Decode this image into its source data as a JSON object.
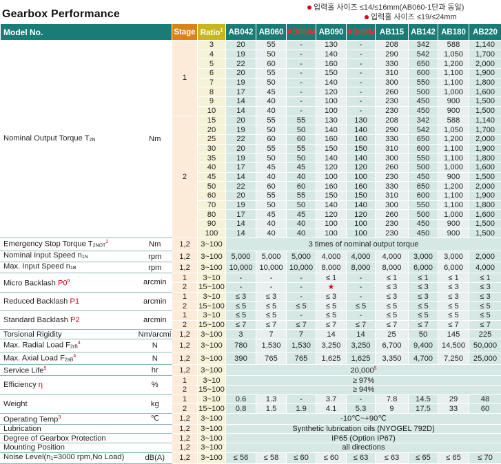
{
  "title": "Gearbox Performance",
  "notes": {
    "note1": "입력홀 사이즈 ≤14/≤16mm(AB060-1단과 동일)",
    "note2": "입력홀 사이즈 ≤19/≤24mm"
  },
  "header": {
    "model": "Model No.",
    "stage": "Stage",
    "ratio": "Ratio",
    "ratio_sup": "1",
    "models": [
      "AB042",
      "AB060",
      "AB060A",
      "AB090",
      "AB090A",
      "AB115",
      "AB142",
      "AB180",
      "AB220"
    ]
  },
  "torque": {
    "label": "Nominal Output Torque T",
    "label_sub": "2N",
    "unit": "Nm",
    "stage1": {
      "stage": "1",
      "rows": [
        [
          "3",
          "20",
          "55",
          "-",
          "130",
          "-",
          "208",
          "342",
          "588",
          "1,140"
        ],
        [
          "4",
          "19",
          "50",
          "-",
          "140",
          "-",
          "290",
          "542",
          "1,050",
          "1,700"
        ],
        [
          "5",
          "22",
          "60",
          "-",
          "160",
          "-",
          "330",
          "650",
          "1,200",
          "2,000"
        ],
        [
          "6",
          "20",
          "55",
          "-",
          "150",
          "-",
          "310",
          "600",
          "1,100",
          "1,900"
        ],
        [
          "7",
          "19",
          "50",
          "-",
          "140",
          "-",
          "300",
          "550",
          "1,100",
          "1,800"
        ],
        [
          "8",
          "17",
          "45",
          "-",
          "120",
          "-",
          "260",
          "500",
          "1,000",
          "1,600"
        ],
        [
          "9",
          "14",
          "40",
          "-",
          "100",
          "-",
          "230",
          "450",
          "900",
          "1,500"
        ],
        [
          "10",
          "14",
          "40",
          "-",
          "100",
          "-",
          "230",
          "450",
          "900",
          "1,500"
        ]
      ]
    },
    "stage2": {
      "stage": "2",
      "rows": [
        [
          "15",
          "20",
          "55",
          "55",
          "130",
          "130",
          "208",
          "342",
          "588",
          "1,140"
        ],
        [
          "20",
          "19",
          "50",
          "50",
          "140",
          "140",
          "290",
          "542",
          "1,050",
          "1,700"
        ],
        [
          "25",
          "22",
          "60",
          "60",
          "160",
          "160",
          "330",
          "650",
          "1,200",
          "2,000"
        ],
        [
          "30",
          "20",
          "55",
          "55",
          "150",
          "150",
          "310",
          "600",
          "1,100",
          "1,900"
        ],
        [
          "35",
          "19",
          "50",
          "50",
          "140",
          "140",
          "300",
          "550",
          "1,100",
          "1,800"
        ],
        [
          "40",
          "17",
          "45",
          "45",
          "120",
          "120",
          "260",
          "500",
          "1,000",
          "1,600"
        ],
        [
          "45",
          "14",
          "40",
          "40",
          "100",
          "100",
          "230",
          "450",
          "900",
          "1,500"
        ],
        [
          "50",
          "22",
          "60",
          "60",
          "160",
          "160",
          "330",
          "650",
          "1,200",
          "2,000"
        ],
        [
          "60",
          "20",
          "55",
          "55",
          "150",
          "150",
          "310",
          "600",
          "1,100",
          "1,900"
        ],
        [
          "70",
          "19",
          "50",
          "50",
          "140",
          "140",
          "300",
          "550",
          "1,100",
          "1,800"
        ],
        [
          "80",
          "17",
          "45",
          "45",
          "120",
          "120",
          "260",
          "500",
          "1,000",
          "1,600"
        ],
        [
          "90",
          "14",
          "40",
          "40",
          "100",
          "100",
          "230",
          "450",
          "900",
          "1,500"
        ],
        [
          "100",
          "14",
          "40",
          "40",
          "100",
          "100",
          "230",
          "450",
          "900",
          "1,500"
        ]
      ]
    }
  },
  "emergency": {
    "label": "Emergency Stop Torque T",
    "sub": "2NOT",
    "sup": "2",
    "unit": "Nm",
    "stage": "1,2",
    "ratio": "3~100",
    "value": "3 times of nominal output torque"
  },
  "input_speed": {
    "label": "Nominal Input Speed n",
    "sub": "1N",
    "unit": "rpm",
    "stage": "1,2",
    "ratio": "3~100",
    "values": [
      "5,000",
      "5,000",
      "5,000",
      "4,000",
      "4,000",
      "4,000",
      "3,000",
      "3,000",
      "2,000"
    ]
  },
  "max_speed": {
    "label": "Max. Input Speed n",
    "sub": "1B",
    "unit": "rpm",
    "stage": "1,2",
    "ratio": "3~100",
    "values": [
      "10,000",
      "10,000",
      "10,000",
      "8,000",
      "8,000",
      "8,000",
      "6,000",
      "6,000",
      "4,000"
    ]
  },
  "micro_backlash": {
    "label": "Micro Backlash ",
    "p": "P0",
    "sup": "6",
    "unit": "arcmin",
    "rows": [
      {
        "stage": "1",
        "ratio": "3~10",
        "values": [
          "-",
          "-",
          "-",
          "≤ 1",
          "-",
          "≤ 1",
          "≤ 1",
          "≤ 1",
          "≤ 1"
        ]
      },
      {
        "stage": "2",
        "ratio": "15~100",
        "values": [
          "-",
          "-",
          "-",
          "★",
          "-",
          "≤ 3",
          "≤ 3",
          "≤ 3",
          "≤ 3"
        ]
      }
    ]
  },
  "reduced_backlash": {
    "label": "Reduced Backlash ",
    "p": "P1",
    "unit": "arcmin",
    "rows": [
      {
        "stage": "1",
        "ratio": "3~10",
        "values": [
          "≤ 3",
          "≤ 3",
          "-",
          "≤ 3",
          "-",
          "≤ 3",
          "≤ 3",
          "≤ 3",
          "≤ 3"
        ]
      },
      {
        "stage": "2",
        "ratio": "15~100",
        "values": [
          "≤ 5",
          "≤ 5",
          "≤ 5",
          "≤ 5",
          "≤ 5",
          "≤ 5",
          "≤ 5",
          "≤ 5",
          "≤ 5"
        ]
      }
    ]
  },
  "standard_backlash": {
    "label": "Standard Backlash ",
    "p": "P2",
    "unit": "arcmin",
    "rows": [
      {
        "stage": "1",
        "ratio": "3~10",
        "values": [
          "≤ 5",
          "≤ 5",
          "-",
          "≤ 5",
          "-",
          "≤ 5",
          "≤ 5",
          "≤ 5",
          "≤ 5"
        ]
      },
      {
        "stage": "2",
        "ratio": "15~100",
        "values": [
          "≤ 7",
          "≤ 7",
          "≤ 7",
          "≤ 7",
          "≤ 7",
          "≤ 7",
          "≤ 7",
          "≤ 7",
          "≤ 7"
        ]
      }
    ]
  },
  "torsional": {
    "label": "Torsional Rigidity",
    "unit": "Nm/arcmin",
    "stage": "1,2",
    "ratio": "3~100",
    "values": [
      "3",
      "7",
      "7",
      "14",
      "14",
      "25",
      "50",
      "145",
      "225"
    ]
  },
  "radial": {
    "label": "Max. Radial Load F",
    "sub": "2rB",
    "sup": "4",
    "unit": "N",
    "stage": "1,2",
    "ratio": "3~100",
    "values": [
      "780",
      "1,530",
      "1,530",
      "3,250",
      "3,250",
      "6,700",
      "9,400",
      "14,500",
      "50,000"
    ]
  },
  "axial": {
    "label": "Max. Axial Load F",
    "sub": "2aB",
    "sup": "4",
    "unit": "N",
    "stage": "1,2",
    "ratio": "3~100",
    "values": [
      "390",
      "765",
      "765",
      "1,625",
      "1,625",
      "3,350",
      "4,700",
      "7,250",
      "25,000"
    ]
  },
  "service": {
    "label": "Service Life",
    "unit": "hr",
    "stage": "1,2",
    "ratio": "3~100",
    "value": "20,000",
    "sup": "5"
  },
  "efficiency": {
    "label": "Efficiency ",
    "eta": "η",
    "unit": "%",
    "rows": [
      {
        "stage": "1",
        "ratio": "3~10",
        "value": "≥ 97%"
      },
      {
        "stage": "2",
        "ratio": "15~100",
        "value": "≥ 94%"
      }
    ]
  },
  "weight": {
    "label": "Weight",
    "unit": "kg",
    "rows": [
      {
        "stage": "1",
        "ratio": "3~10",
        "values": [
          "0.6",
          "1.3",
          "-",
          "3.7",
          "-",
          "7.8",
          "14.5",
          "29",
          "48"
        ]
      },
      {
        "stage": "2",
        "ratio": "15~100",
        "values": [
          "0.8",
          "1.5",
          "1.9",
          "4.1",
          "5.3",
          "9",
          "17.5",
          "33",
          "60"
        ]
      }
    ]
  },
  "op_temp": {
    "label": "Operating Temp",
    "sup": "3",
    "unit": "℃",
    "stage": "1,2",
    "ratio": "3~100",
    "value": "-10℃~+90℃"
  },
  "lubrication": {
    "label": "Lubrication",
    "unit": "",
    "stage": "1,2",
    "ratio": "3~100",
    "value": "Synthetic lubrication oils (NYOGEL 792D)"
  },
  "protection": {
    "label": "Degree of Gearbox Protection",
    "unit": "",
    "stage": "1,2",
    "ratio": "3~100",
    "value": "IP65 (Option IP67)"
  },
  "mounting": {
    "label": "Mounting Position",
    "unit": "",
    "stage": "1,2",
    "ratio": "3~100",
    "value": "all directions"
  },
  "noise": {
    "label": "Noise Level(n",
    "sub": "1",
    "label2": "=3000 rpm,No Load)",
    "unit": "dB(A)",
    "stage": "1,2",
    "ratio": "3~100",
    "values": [
      "≤ 56",
      "≤ 58",
      "≤ 60",
      "≤ 60",
      "≤ 63",
      "≤ 63",
      "≤ 65",
      "≤ 65",
      "≤ 70"
    ]
  }
}
